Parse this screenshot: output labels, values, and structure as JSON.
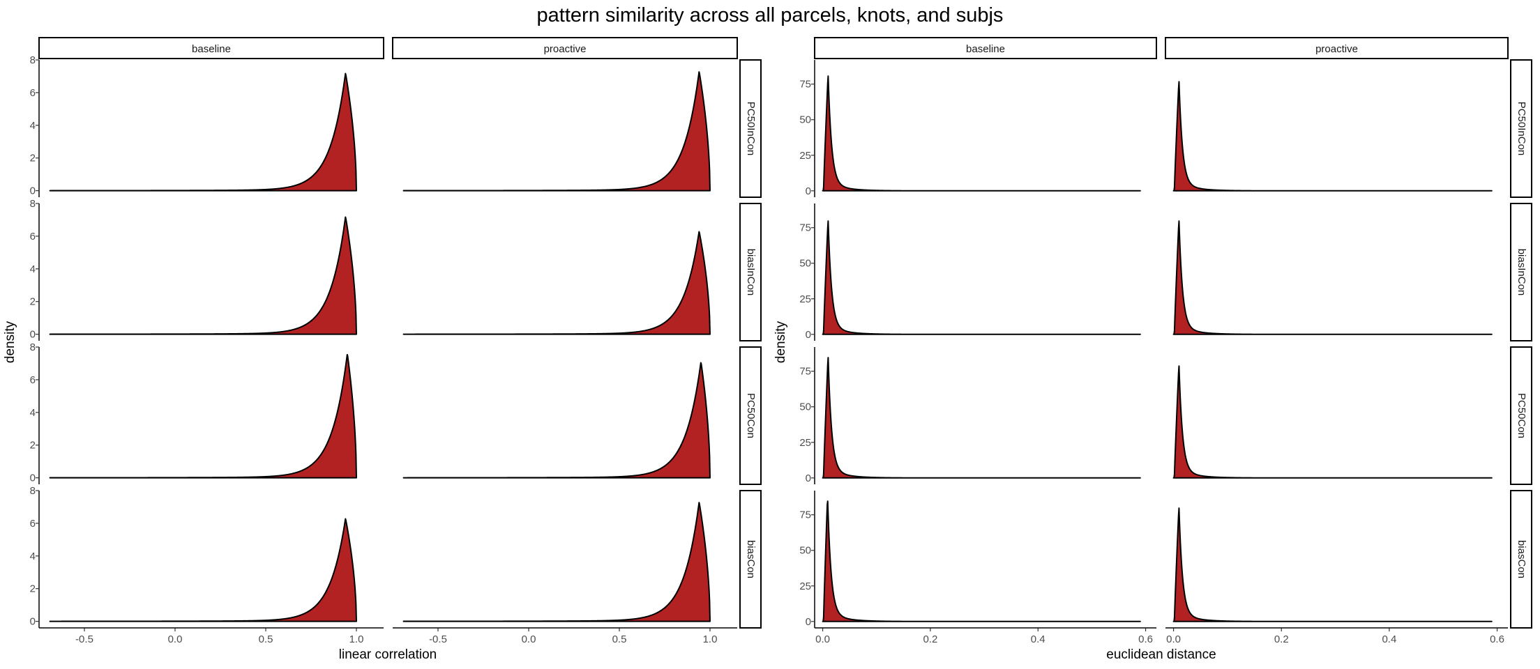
{
  "title": "pattern similarity across all parcels, knots, and subjs",
  "colors": {
    "fill": "#b22222",
    "outline": "#000000",
    "strip_border": "#000000",
    "tick": "#4d4d4d"
  },
  "chart_data": [
    {
      "type": "area",
      "name": "linear-correlation-density",
      "xlabel": "linear correlation",
      "ylabel": "density",
      "xlim": [
        -0.75,
        1.15
      ],
      "ylim": [
        -0.4,
        8.0
      ],
      "xticks": [
        -0.5,
        0.0,
        0.5,
        1.0
      ],
      "xtick_labels": [
        "-0.5",
        "0.0",
        "0.5",
        "1.0"
      ],
      "yticks": [
        0,
        2,
        4,
        6,
        8
      ],
      "ytick_labels": [
        "0",
        "2",
        "4",
        "6",
        "8"
      ],
      "columns": [
        "baseline",
        "proactive"
      ],
      "rows": [
        "PC50InCon",
        "biasInCon",
        "PC50Con",
        "biasCon"
      ],
      "panels": [
        {
          "row": "PC50InCon",
          "col": "baseline",
          "dist": "skew-left",
          "x_min": -0.69,
          "x_max": 1.0,
          "mode": 0.94,
          "peak": 7.2
        },
        {
          "row": "PC50InCon",
          "col": "proactive",
          "dist": "skew-left",
          "x_min": -0.69,
          "x_max": 1.0,
          "mode": 0.94,
          "peak": 7.3
        },
        {
          "row": "biasInCon",
          "col": "baseline",
          "dist": "skew-left",
          "x_min": -0.69,
          "x_max": 1.0,
          "mode": 0.94,
          "peak": 7.2
        },
        {
          "row": "biasInCon",
          "col": "proactive",
          "dist": "skew-left",
          "x_min": -0.69,
          "x_max": 1.0,
          "mode": 0.94,
          "peak": 6.3
        },
        {
          "row": "PC50Con",
          "col": "baseline",
          "dist": "skew-left",
          "x_min": -0.69,
          "x_max": 1.0,
          "mode": 0.95,
          "peak": 7.6
        },
        {
          "row": "PC50Con",
          "col": "proactive",
          "dist": "skew-left",
          "x_min": -0.69,
          "x_max": 1.0,
          "mode": 0.95,
          "peak": 7.1
        },
        {
          "row": "biasCon",
          "col": "baseline",
          "dist": "skew-left",
          "x_min": -0.69,
          "x_max": 1.0,
          "mode": 0.94,
          "peak": 6.3
        },
        {
          "row": "biasCon",
          "col": "proactive",
          "dist": "skew-left",
          "x_min": -0.69,
          "x_max": 1.0,
          "mode": 0.94,
          "peak": 7.3
        }
      ]
    },
    {
      "type": "area",
      "name": "euclidean-distance-density",
      "xlabel": "euclidean distance",
      "ylabel": "density",
      "xlim": [
        -0.015,
        0.62
      ],
      "ylim": [
        -4.5,
        92
      ],
      "xticks": [
        0.0,
        0.2,
        0.4,
        0.6
      ],
      "xtick_labels": [
        "0.0",
        "0.2",
        "0.4",
        "0.6"
      ],
      "yticks": [
        0,
        25,
        50,
        75
      ],
      "ytick_labels": [
        "0",
        "25",
        "50",
        "75"
      ],
      "columns": [
        "baseline",
        "proactive"
      ],
      "rows": [
        "PC50InCon",
        "biasInCon",
        "PC50Con",
        "biasCon"
      ],
      "panels": [
        {
          "row": "PC50InCon",
          "col": "baseline",
          "dist": "skew-right",
          "x_min": 0.0,
          "x_max": 0.59,
          "mode": 0.01,
          "peak": 82
        },
        {
          "row": "PC50InCon",
          "col": "proactive",
          "dist": "skew-right",
          "x_min": 0.0,
          "x_max": 0.59,
          "mode": 0.01,
          "peak": 78
        },
        {
          "row": "biasInCon",
          "col": "baseline",
          "dist": "skew-right",
          "x_min": 0.0,
          "x_max": 0.59,
          "mode": 0.01,
          "peak": 81
        },
        {
          "row": "biasInCon",
          "col": "proactive",
          "dist": "skew-right",
          "x_min": 0.0,
          "x_max": 0.59,
          "mode": 0.01,
          "peak": 81
        },
        {
          "row": "PC50Con",
          "col": "baseline",
          "dist": "skew-right",
          "x_min": 0.0,
          "x_max": 0.59,
          "mode": 0.01,
          "peak": 86
        },
        {
          "row": "PC50Con",
          "col": "proactive",
          "dist": "skew-right",
          "x_min": 0.0,
          "x_max": 0.59,
          "mode": 0.01,
          "peak": 80
        },
        {
          "row": "biasCon",
          "col": "baseline",
          "dist": "skew-right",
          "x_min": 0.0,
          "x_max": 0.59,
          "mode": 0.009,
          "peak": 88
        },
        {
          "row": "biasCon",
          "col": "proactive",
          "dist": "skew-right",
          "x_min": 0.0,
          "x_max": 0.59,
          "mode": 0.01,
          "peak": 81
        }
      ]
    }
  ]
}
